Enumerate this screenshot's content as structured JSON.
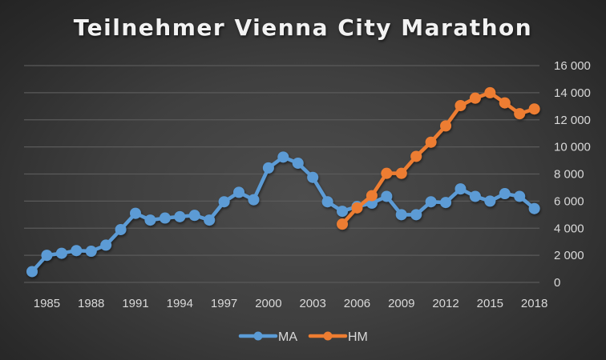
{
  "chart_data": {
    "type": "line",
    "title": "Teilnehmer Vienna City Marathon",
    "xlabel": "",
    "ylabel": "",
    "x": [
      1984,
      1985,
      1986,
      1987,
      1988,
      1989,
      1990,
      1991,
      1992,
      1993,
      1994,
      1995,
      1996,
      1997,
      1998,
      1999,
      2000,
      2001,
      2002,
      2003,
      2004,
      2005,
      2006,
      2007,
      2008,
      2009,
      2010,
      2011,
      2012,
      2013,
      2014,
      2015,
      2016,
      2017,
      2018
    ],
    "x_tick_labels": [
      "1985",
      "1988",
      "1991",
      "1994",
      "1997",
      "2000",
      "2003",
      "2006",
      "2009",
      "2012",
      "2015",
      "2018"
    ],
    "y_tick_labels": [
      "0",
      "2 000",
      "4 000",
      "6 000",
      "8 000",
      "10 000",
      "12 000",
      "14 000",
      "16 000"
    ],
    "ylim": [
      0,
      16000
    ],
    "y_axis_position": "right",
    "grid": true,
    "legend_position": "bottom",
    "series": [
      {
        "name": "MA",
        "color": "#5b9bd5",
        "x_start": 1984,
        "values": [
          800,
          2000,
          2150,
          2350,
          2300,
          2750,
          3900,
          5100,
          4600,
          4750,
          4850,
          4950,
          4600,
          5950,
          6650,
          6100,
          8450,
          9250,
          8800,
          7750,
          5950,
          5250,
          5600,
          5850,
          6350,
          5000,
          5000,
          5950,
          5900,
          6900,
          6350,
          6000,
          6550,
          6350,
          5450
        ]
      },
      {
        "name": "HM",
        "color": "#ed7d31",
        "x_start": 2005,
        "values": [
          4300,
          5500,
          6400,
          8050,
          8050,
          9300,
          10350,
          11550,
          13050,
          13600,
          14000,
          13250,
          12450,
          12800
        ]
      }
    ]
  },
  "colors": {
    "gridline": "#5a5a5a",
    "text": "#d9d9d9",
    "title": "#f2f2f2"
  }
}
